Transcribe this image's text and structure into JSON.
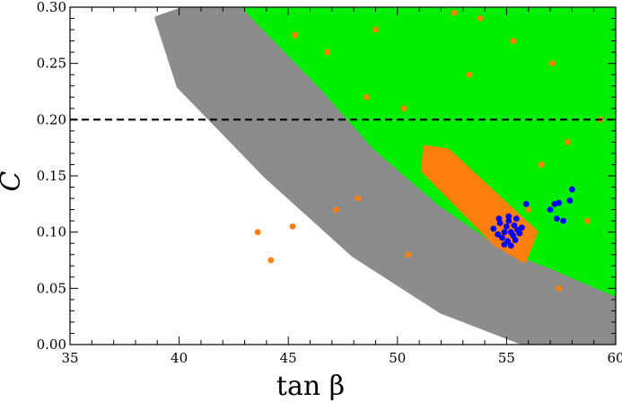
{
  "chart_data": {
    "type": "scatter",
    "title": "",
    "xlabel": "tan β",
    "ylabel": "C",
    "xlim": [
      35,
      60
    ],
    "ylim": [
      0.0,
      0.3
    ],
    "x_ticks": [
      "35",
      "40",
      "45",
      "50",
      "55",
      "60"
    ],
    "y_ticks": [
      "0.00",
      "0.05",
      "0.10",
      "0.15",
      "0.20",
      "0.25",
      "0.30"
    ],
    "grid": false,
    "legend": "none",
    "reference_line": {
      "y": 0.2,
      "style": "dashed",
      "color": "#000000"
    },
    "regions": [
      {
        "color": "#8c8c8c",
        "description_of_extent_in_data_units": "gray band",
        "polygon": [
          [
            39.0,
            0.29
          ],
          [
            40.5,
            0.3
          ],
          [
            46,
            0.3
          ],
          [
            52,
            0.16
          ],
          [
            55.5,
            0.09
          ],
          [
            60,
            0.06
          ],
          [
            60,
            0.0
          ],
          [
            56,
            0.0
          ],
          [
            52,
            0.03
          ],
          [
            48,
            0.08
          ],
          [
            44,
            0.15
          ],
          [
            40,
            0.23
          ]
        ]
      },
      {
        "color": "#00ee00",
        "polygon": [
          [
            43.0,
            0.3
          ],
          [
            60,
            0.3
          ],
          [
            60,
            0.045
          ],
          [
            57,
            0.07
          ],
          [
            55,
            0.085
          ],
          [
            52,
            0.125
          ],
          [
            49,
            0.175
          ],
          [
            46.5,
            0.23
          ]
        ]
      },
      {
        "color": "#ff7f0f",
        "polygon": [
          [
            51.3,
            0.175
          ],
          [
            52.3,
            0.172
          ],
          [
            56.3,
            0.1
          ],
          [
            55.8,
            0.075
          ],
          [
            54.5,
            0.09
          ],
          [
            51.2,
            0.155
          ]
        ]
      }
    ],
    "series": [
      {
        "color": "#ff7f0f",
        "points": [
          [
            43.6,
            0.1
          ],
          [
            44.2,
            0.075
          ],
          [
            45.2,
            0.105
          ],
          [
            47.2,
            0.12
          ],
          [
            48.2,
            0.13
          ],
          [
            50.5,
            0.08
          ],
          [
            52.6,
            0.295
          ],
          [
            49.0,
            0.28
          ],
          [
            45.3,
            0.275
          ],
          [
            46.8,
            0.26
          ],
          [
            53.8,
            0.29
          ],
          [
            55.3,
            0.27
          ],
          [
            56.6,
            0.16
          ],
          [
            57.8,
            0.18
          ],
          [
            58.7,
            0.11
          ],
          [
            59.3,
            0.2
          ],
          [
            57.1,
            0.25
          ],
          [
            53.3,
            0.24
          ],
          [
            50.3,
            0.21
          ],
          [
            48.6,
            0.22
          ],
          [
            56.0,
            0.12
          ],
          [
            57.4,
            0.05
          ]
        ]
      },
      {
        "color": "#0000ff",
        "points": [
          [
            54.4,
            0.103
          ],
          [
            54.6,
            0.098
          ],
          [
            54.7,
            0.108
          ],
          [
            54.8,
            0.095
          ],
          [
            54.9,
            0.1
          ],
          [
            55.0,
            0.105
          ],
          [
            55.05,
            0.092
          ],
          [
            55.1,
            0.11
          ],
          [
            55.2,
            0.1
          ],
          [
            55.3,
            0.097
          ],
          [
            55.35,
            0.106
          ],
          [
            55.4,
            0.093
          ],
          [
            55.5,
            0.102
          ],
          [
            55.6,
            0.099
          ],
          [
            55.7,
            0.104
          ],
          [
            54.9,
            0.089
          ],
          [
            55.2,
            0.088
          ],
          [
            55.1,
            0.114
          ],
          [
            55.45,
            0.112
          ],
          [
            54.65,
            0.112
          ],
          [
            55.9,
            0.125
          ],
          [
            57.0,
            0.12
          ],
          [
            57.2,
            0.125
          ],
          [
            57.4,
            0.126
          ],
          [
            57.3,
            0.112
          ],
          [
            57.6,
            0.11
          ],
          [
            57.9,
            0.128
          ],
          [
            58.0,
            0.138
          ]
        ]
      }
    ]
  }
}
